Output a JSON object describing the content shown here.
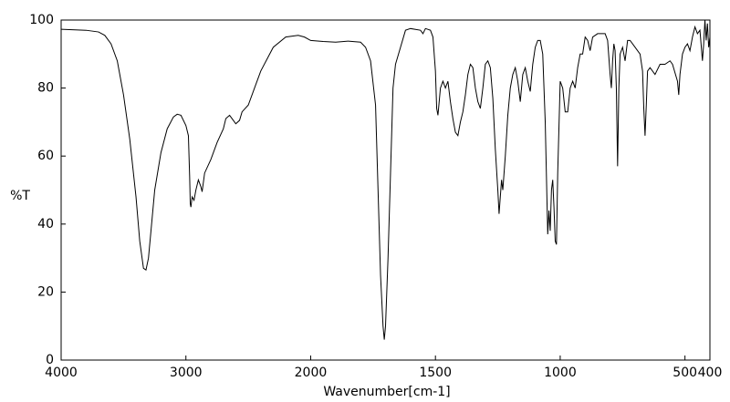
{
  "chart_data": {
    "type": "line",
    "xlabel": "Wavenumber[cm-1]",
    "ylabel": "%T",
    "xlim": [
      4000,
      400
    ],
    "ylim": [
      0,
      100
    ],
    "x_scale_break": 2000,
    "x_scale_factor": 2,
    "xticks": [
      4000,
      3000,
      2000,
      1500,
      1000,
      500,
      400
    ],
    "yticks": [
      0,
      20,
      40,
      60,
      80,
      100
    ],
    "color": "#000000",
    "x": [
      4000,
      3800,
      3700,
      3650,
      3600,
      3550,
      3500,
      3450,
      3400,
      3370,
      3340,
      3320,
      3300,
      3280,
      3250,
      3200,
      3150,
      3100,
      3070,
      3040,
      3000,
      2980,
      2970,
      2965,
      2960,
      2950,
      2935,
      2920,
      2900,
      2880,
      2870,
      2850,
      2800,
      2750,
      2700,
      2680,
      2650,
      2600,
      2570,
      2550,
      2500,
      2450,
      2400,
      2300,
      2200,
      2100,
      2050,
      2000,
      1950,
      1900,
      1850,
      1800,
      1780,
      1760,
      1740,
      1730,
      1720,
      1710,
      1705,
      1700,
      1690,
      1680,
      1670,
      1660,
      1640,
      1620,
      1600,
      1560,
      1550,
      1540,
      1520,
      1510,
      1500,
      1495,
      1490,
      1480,
      1470,
      1460,
      1450,
      1440,
      1430,
      1420,
      1410,
      1400,
      1390,
      1380,
      1370,
      1360,
      1350,
      1340,
      1330,
      1320,
      1310,
      1300,
      1290,
      1280,
      1270,
      1260,
      1250,
      1245,
      1240,
      1235,
      1230,
      1220,
      1210,
      1200,
      1190,
      1180,
      1170,
      1160,
      1150,
      1140,
      1130,
      1120,
      1110,
      1100,
      1090,
      1080,
      1070,
      1060,
      1050,
      1045,
      1040,
      1035,
      1030,
      1025,
      1020,
      1015,
      1010,
      1000,
      990,
      980,
      970,
      960,
      950,
      940,
      930,
      920,
      910,
      900,
      890,
      880,
      870,
      850,
      820,
      810,
      800,
      795,
      790,
      785,
      780,
      775,
      770,
      765,
      760,
      750,
      740,
      730,
      720,
      700,
      680,
      670,
      665,
      660,
      655,
      650,
      640,
      620,
      600,
      580,
      560,
      550,
      530,
      525,
      520,
      510,
      500,
      490,
      480,
      470,
      460,
      450,
      440,
      430,
      425,
      420,
      415,
      410,
      405,
      400
    ],
    "values": [
      97.3,
      97,
      96.5,
      95.5,
      93,
      88,
      78,
      65,
      48,
      35,
      27,
      26.5,
      30,
      38,
      50,
      61,
      68,
      71.5,
      72.3,
      72,
      69,
      66,
      54,
      46,
      45,
      48,
      47,
      50,
      53,
      51,
      49.5,
      55,
      59,
      64,
      68,
      71,
      72,
      69.5,
      70.5,
      73,
      75,
      80,
      85,
      92,
      95,
      95.5,
      95,
      94,
      93.7,
      93.5,
      93.8,
      93.5,
      92,
      88,
      75,
      50,
      25,
      10,
      6,
      10,
      30,
      55,
      80,
      87,
      92,
      97,
      97.5,
      97,
      96,
      97.5,
      97,
      95,
      85,
      74,
      72,
      80,
      82,
      80,
      82,
      76,
      71,
      67,
      66,
      70,
      73,
      78,
      84,
      87,
      86,
      80,
      76,
      74,
      80,
      87,
      88,
      86,
      77,
      62,
      50,
      43,
      48,
      53,
      50,
      60,
      72,
      80,
      84,
      86,
      82,
      76,
      84,
      86,
      82,
      79,
      87,
      92,
      94,
      94,
      90,
      70,
      37,
      44,
      38,
      50,
      53,
      45,
      35,
      34,
      55,
      82,
      80,
      73,
      73,
      80,
      82,
      80,
      86,
      90,
      90,
      95,
      94,
      91,
      95,
      96,
      96,
      94,
      84,
      80,
      88,
      93,
      91,
      80,
      57,
      80,
      90,
      92,
      88,
      94,
      94,
      92,
      90,
      85,
      74,
      66,
      75,
      85,
      86,
      84,
      87,
      87,
      88,
      87,
      82,
      78,
      84,
      90,
      92,
      93,
      91,
      95,
      98,
      96,
      97,
      88,
      93,
      100,
      94,
      99,
      92,
      95
    ]
  }
}
